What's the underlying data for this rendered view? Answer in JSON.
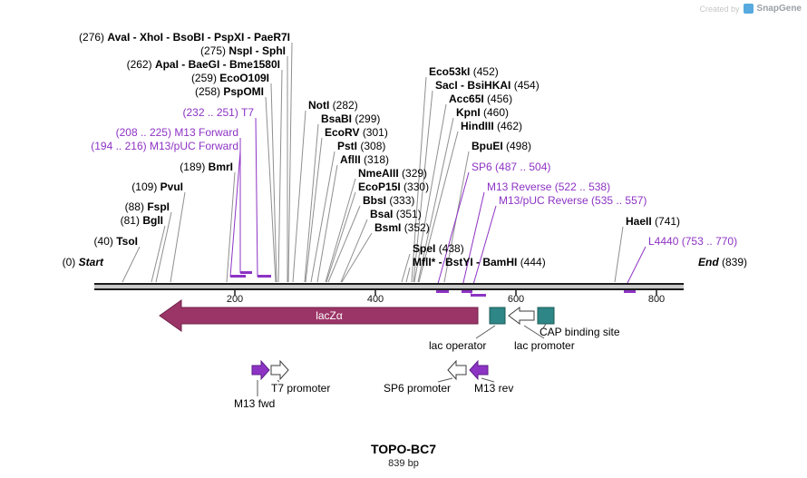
{
  "watermark": {
    "created_by": "Created by",
    "brand": "SnapGene"
  },
  "plasmid": {
    "name": "TOPO-BC7",
    "length": "839 bp"
  },
  "map": {
    "start": {
      "pos": "(0)",
      "label": "Start"
    },
    "end": {
      "pos": "(839)",
      "label": "End"
    },
    "ticks": [
      "200",
      "400",
      "600",
      "800"
    ]
  },
  "sites": [
    {
      "pos": "(276)",
      "name": "AvaI - XhoI - BsoBI - PspXI - PaeR7I"
    },
    {
      "pos": "(275)",
      "name": "NspI - SphI"
    },
    {
      "pos": "(262)",
      "name": "ApaI - BaeGI - Bme1580I"
    },
    {
      "pos": "(259)",
      "name": "EcoO109I"
    },
    {
      "pos": "(258)",
      "name": "PspOMI"
    },
    {
      "pos": "(232 .. 251)",
      "name": "T7",
      "type": "primer"
    },
    {
      "pos": "(208 .. 225)",
      "name": "M13 Forward",
      "type": "primer"
    },
    {
      "pos": "(194 .. 216)",
      "name": "M13/pUC Forward",
      "type": "primer"
    },
    {
      "pos": "(189)",
      "name": "BmrI"
    },
    {
      "pos": "(109)",
      "name": "PvuI"
    },
    {
      "pos": "(88)",
      "name": "FspI"
    },
    {
      "pos": "(81)",
      "name": "BglI"
    },
    {
      "pos": "(40)",
      "name": "TsoI"
    },
    {
      "pos": "(282)",
      "name": "NotI"
    },
    {
      "pos": "(299)",
      "name": "BsaBI"
    },
    {
      "pos": "(301)",
      "name": "EcoRV"
    },
    {
      "pos": "(308)",
      "name": "PstI"
    },
    {
      "pos": "(318)",
      "name": "AflII"
    },
    {
      "pos": "(329)",
      "name": "NmeAIII"
    },
    {
      "pos": "(330)",
      "name": "EcoP15I"
    },
    {
      "pos": "(333)",
      "name": "BbsI"
    },
    {
      "pos": "(351)",
      "name": "BsaI"
    },
    {
      "pos": "(352)",
      "name": "BsmI"
    },
    {
      "pos": "(438)",
      "name": "SpeI"
    },
    {
      "pos": "(444)",
      "name": "MflI* - BstYI - BamHI"
    },
    {
      "pos": "(452)",
      "name": "Eco53kI"
    },
    {
      "pos": "(454)",
      "name": "SacI - BsiHKAI"
    },
    {
      "pos": "(456)",
      "name": "Acc65I"
    },
    {
      "pos": "(460)",
      "name": "KpnI"
    },
    {
      "pos": "(462)",
      "name": "HindIII"
    },
    {
      "pos": "(498)",
      "name": "BpuEI"
    },
    {
      "pos": "(487 .. 504)",
      "name": "SP6",
      "type": "primer"
    },
    {
      "pos": "(522 .. 538)",
      "name": "M13 Reverse",
      "type": "primer"
    },
    {
      "pos": "(535 .. 557)",
      "name": "M13/pUC Reverse",
      "type": "primer"
    },
    {
      "pos": "(741)",
      "name": "HaeII"
    },
    {
      "pos": "(753 .. 770)",
      "name": "L4440",
      "type": "primer"
    }
  ],
  "features": {
    "lacz": "lacZα",
    "lac_operator": "lac operator",
    "lac_promoter": "lac promoter",
    "cap_binding_site": "CAP binding site",
    "t7_promoter": "T7 promoter",
    "m13_fwd": "M13 fwd",
    "sp6_promoter": "SP6 promoter",
    "m13_rev": "M13 rev"
  },
  "colors": {
    "primer_purple": "#8d33c4",
    "primer_dark": "#5c1f8a",
    "enzyme_leader": "#8f8f8f",
    "sequence_line": "#1c1c1c",
    "line_gap": "#c9c9c9",
    "lacz_fill": "#9c3567",
    "lacz_border": "#6e2148",
    "binding_site_fill": "#2e8686",
    "binding_site_border": "#1b5a56",
    "white_arrow_fill": "#ffffff",
    "arrow_border": "#3c3c3c",
    "feature_connector": "#5a5a5a"
  }
}
